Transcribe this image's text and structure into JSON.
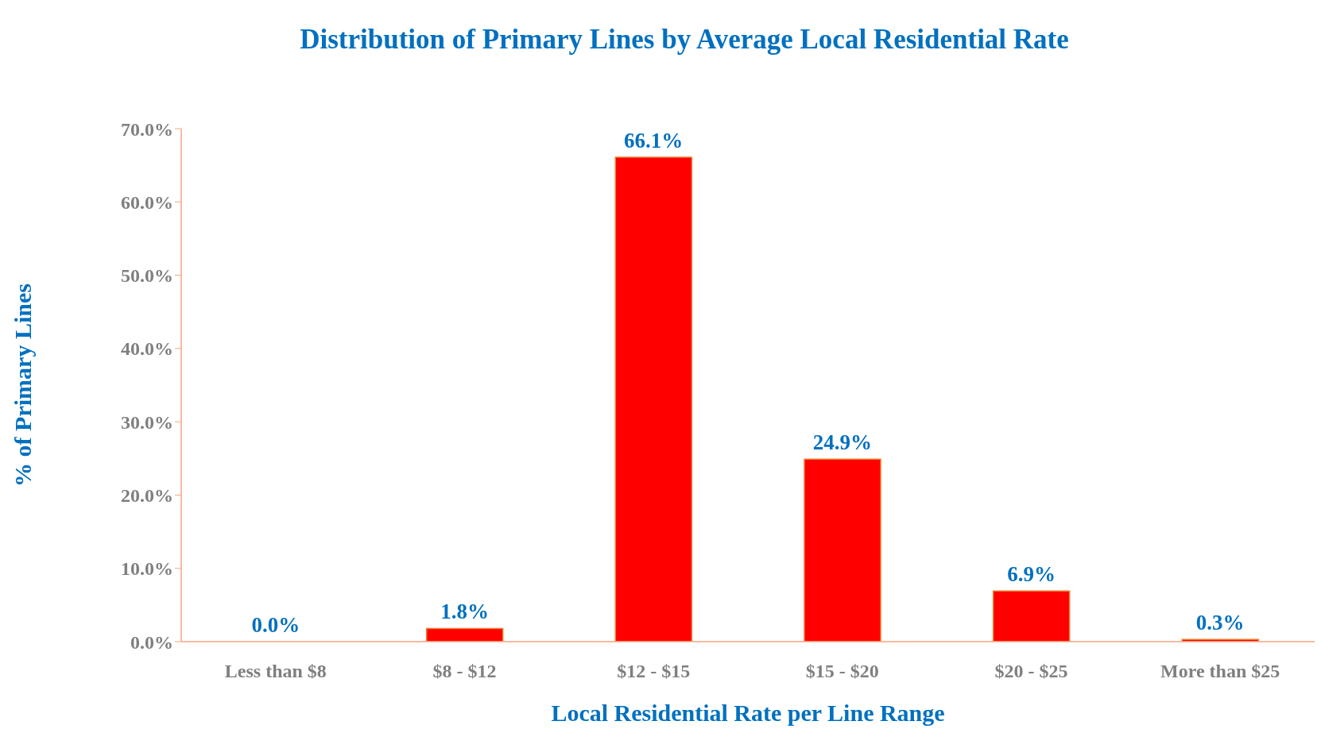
{
  "chart_data": {
    "type": "bar",
    "title": "Distribution of Primary Lines by Average Local Residential Rate",
    "xlabel": "Local Residential Rate per Line Range",
    "ylabel": "% of  Primary Lines",
    "categories": [
      "Less than $8",
      "$8 - $12",
      "$12 - $15",
      "$15 - $20",
      "$20 - $25",
      "More than $25"
    ],
    "values": [
      0.0,
      1.8,
      66.1,
      24.9,
      6.9,
      0.3
    ],
    "value_labels": [
      "0.0%",
      "1.8%",
      "66.1%",
      "24.9%",
      "6.9%",
      "0.3%"
    ],
    "color": "#ff0000",
    "ylim": [
      0,
      70
    ],
    "yticks": [
      {
        "value": 0,
        "label": "0.0%"
      },
      {
        "value": 10,
        "label": "10.0%"
      },
      {
        "value": 20,
        "label": "20.0%"
      },
      {
        "value": 30,
        "label": "30.0%"
      },
      {
        "value": 40,
        "label": "40.0%"
      },
      {
        "value": 50,
        "label": "50.0%"
      },
      {
        "value": 60,
        "label": "60.0%"
      },
      {
        "value": 70,
        "label": "70.0%"
      }
    ],
    "grid": false,
    "legend": false
  }
}
